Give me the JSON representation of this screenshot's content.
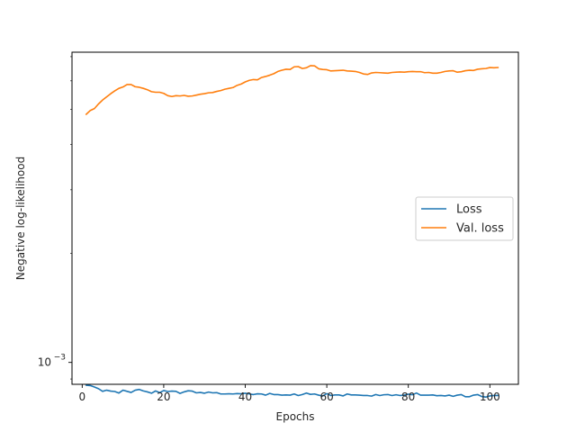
{
  "chart_data": {
    "type": "line",
    "xlabel": "Epochs",
    "ylabel": "Negative log-likelihood",
    "yscale": "log",
    "xlim": [
      -2.5,
      107
    ],
    "ylim": [
      0.00087,
      0.0072
    ],
    "x_ticks": [
      {
        "value": 0,
        "label": "0"
      },
      {
        "value": 20,
        "label": "20"
      },
      {
        "value": 40,
        "label": "40"
      },
      {
        "value": 60,
        "label": "60"
      },
      {
        "value": 80,
        "label": "80"
      },
      {
        "value": 100,
        "label": "100"
      }
    ],
    "y_ticks": [
      {
        "value": 0.001,
        "label": "10",
        "exponent": "−3"
      }
    ],
    "legend": {
      "position": "center-right"
    },
    "series": [
      {
        "name": "Loss",
        "color": "#1f77b4",
        "x": [
          1,
          2,
          3,
          4,
          5,
          6,
          7,
          8,
          9,
          10,
          11,
          12,
          13,
          14,
          15,
          16,
          17,
          18,
          19,
          20,
          21,
          22,
          23,
          24,
          25,
          26,
          27,
          28,
          29,
          30,
          31,
          32,
          33,
          34,
          35,
          36,
          37,
          38,
          39,
          40,
          41,
          42,
          43,
          44,
          45,
          46,
          47,
          48,
          49,
          50,
          51,
          52,
          53,
          54,
          55,
          56,
          57,
          58,
          59,
          60,
          61,
          62,
          63,
          64,
          65,
          66,
          67,
          68,
          69,
          70,
          71,
          72,
          73,
          74,
          75,
          76,
          77,
          78,
          79,
          80,
          81,
          82,
          83,
          84,
          85,
          86,
          87,
          88,
          89,
          90,
          91,
          92,
          93,
          94,
          95,
          96,
          97,
          98,
          99,
          100,
          101,
          102
        ],
        "y": [
          0.000865,
          0.000863,
          0.000855,
          0.000846,
          0.000832,
          0.000838,
          0.000833,
          0.000831,
          0.000823,
          0.000838,
          0.000832,
          0.000826,
          0.000838,
          0.000842,
          0.000834,
          0.000829,
          0.000822,
          0.000834,
          0.000825,
          0.000836,
          0.000831,
          0.000833,
          0.000832,
          0.000821,
          0.000829,
          0.000835,
          0.000833,
          0.000824,
          0.000826,
          0.000822,
          0.000828,
          0.000824,
          0.000825,
          0.000818,
          0.000818,
          0.000819,
          0.000818,
          0.00082,
          0.000819,
          0.000822,
          0.000818,
          0.000815,
          0.000819,
          0.000818,
          0.000812,
          0.000821,
          0.000815,
          0.000815,
          0.000812,
          0.000813,
          0.000812,
          0.000818,
          0.00081,
          0.000815,
          0.000823,
          0.000816,
          0.000818,
          0.000812,
          0.000808,
          0.00082,
          0.00081,
          0.000813,
          0.000813,
          0.000808,
          0.000818,
          0.000813,
          0.000813,
          0.000812,
          0.00081,
          0.00081,
          0.000807,
          0.000815,
          0.00081,
          0.000814,
          0.000815,
          0.00081,
          0.000814,
          0.00081,
          0.000812,
          0.000817,
          0.000814,
          0.000823,
          0.000812,
          0.000812,
          0.000812,
          0.000813,
          0.000809,
          0.00081,
          0.000808,
          0.000812,
          0.000806,
          0.000812,
          0.000815,
          0.000804,
          0.000804,
          0.000812,
          0.000815,
          0.000805,
          0.000802,
          0.000808,
          0.00081,
          0.00081
        ]
      },
      {
        "name": "Val. loss",
        "color": "#ff7f0e",
        "x": [
          1,
          2,
          3,
          4,
          5,
          6,
          7,
          8,
          9,
          10,
          11,
          12,
          13,
          14,
          15,
          16,
          17,
          18,
          19,
          20,
          21,
          22,
          23,
          24,
          25,
          26,
          27,
          28,
          29,
          30,
          31,
          32,
          33,
          34,
          35,
          36,
          37,
          38,
          39,
          40,
          41,
          42,
          43,
          44,
          45,
          46,
          47,
          48,
          49,
          50,
          51,
          52,
          53,
          54,
          55,
          56,
          57,
          58,
          59,
          60,
          61,
          62,
          63,
          64,
          65,
          66,
          67,
          68,
          69,
          70,
          71,
          72,
          73,
          74,
          75,
          76,
          77,
          78,
          79,
          80,
          81,
          82,
          83,
          84,
          85,
          86,
          87,
          88,
          89,
          90,
          91,
          92,
          93,
          94,
          95,
          96,
          97,
          98,
          99,
          100,
          101,
          102
        ],
        "y": [
          0.00485,
          0.00497,
          0.00503,
          0.00518,
          0.00531,
          0.00542,
          0.00553,
          0.00563,
          0.00572,
          0.00577,
          0.00586,
          0.00586,
          0.00578,
          0.00576,
          0.00572,
          0.00567,
          0.0056,
          0.00558,
          0.00558,
          0.00554,
          0.00546,
          0.00543,
          0.00546,
          0.00545,
          0.00547,
          0.00544,
          0.00545,
          0.00548,
          0.00551,
          0.00553,
          0.00556,
          0.00557,
          0.00561,
          0.00564,
          0.00569,
          0.00572,
          0.00575,
          0.00583,
          0.00588,
          0.00596,
          0.00602,
          0.00605,
          0.00604,
          0.00613,
          0.00617,
          0.00622,
          0.00628,
          0.00637,
          0.00642,
          0.00646,
          0.00645,
          0.00656,
          0.00657,
          0.00649,
          0.00652,
          0.00661,
          0.0066,
          0.00648,
          0.00645,
          0.00644,
          0.00639,
          0.0064,
          0.00641,
          0.00642,
          0.00639,
          0.00638,
          0.00637,
          0.00633,
          0.00627,
          0.00625,
          0.00631,
          0.00633,
          0.00632,
          0.00631,
          0.0063,
          0.00633,
          0.00634,
          0.00635,
          0.00634,
          0.00636,
          0.00637,
          0.00636,
          0.00636,
          0.00632,
          0.00633,
          0.0063,
          0.0063,
          0.00633,
          0.00637,
          0.00639,
          0.0064,
          0.00634,
          0.00636,
          0.0064,
          0.00642,
          0.00641,
          0.00646,
          0.00648,
          0.00649,
          0.00653,
          0.00652,
          0.00653
        ]
      }
    ]
  }
}
